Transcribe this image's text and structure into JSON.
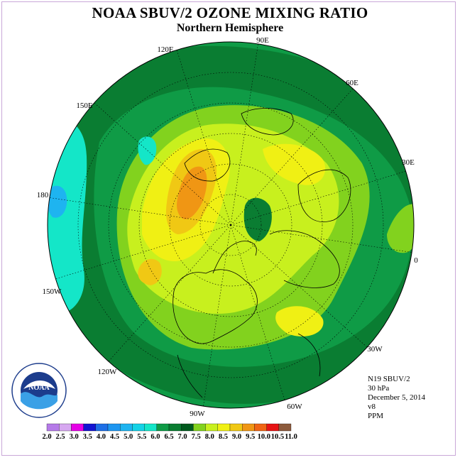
{
  "title": "NOAA SBUV/2 OZONE MIXING RATIO",
  "subtitle": "Northern Hemisphere",
  "longitude_labels": [
    "90E",
    "60E",
    "30E",
    "0",
    "30W",
    "60W",
    "90W",
    "120W",
    "150W",
    "180",
    "150E",
    "120E"
  ],
  "info": {
    "satellite": "N19 SBUV/2",
    "pressure": "30 hPa",
    "date": "December 5, 2014",
    "version": "v8",
    "units": "PPM"
  },
  "colorbar": {
    "labels": [
      "2.0",
      "2.5",
      "3.0",
      "3.5",
      "4.0",
      "4.5",
      "5.0",
      "5.5",
      "6.0",
      "6.5",
      "7.0",
      "7.5",
      "8.0",
      "8.5",
      "9.0",
      "9.5",
      "10.0",
      "10.5",
      "11.0"
    ],
    "colors": [
      "#b57ae8",
      "#d6a7f0",
      "#e600e6",
      "#1414d2",
      "#1e6fe6",
      "#1e96f0",
      "#1eb4f0",
      "#14d2e6",
      "#14e6c8",
      "#0f9b46",
      "#0a7d32",
      "#005a1e",
      "#82d21e",
      "#c8f01e",
      "#f0f014",
      "#f0c814",
      "#f09614",
      "#f06414",
      "#e61414",
      "#8c5a3c"
    ]
  },
  "logo_text": "NOAA"
}
